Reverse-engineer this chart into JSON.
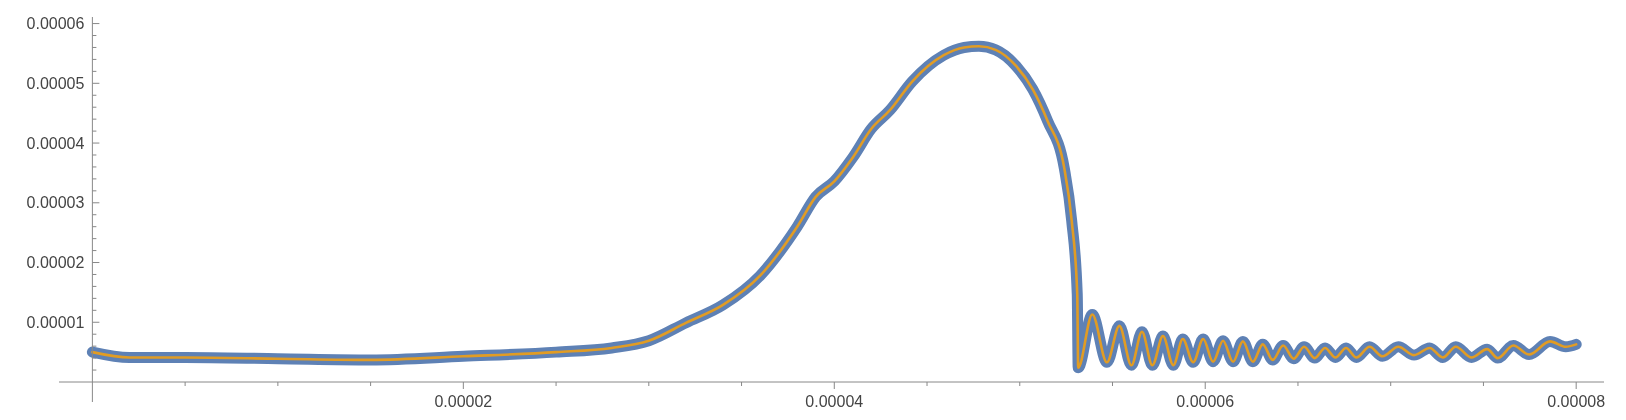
{
  "chart_data": {
    "type": "line",
    "xlim": [
      -1.8e-06,
      8.15e-05
    ],
    "ylim": [
      0,
      6.11e-05
    ],
    "xticks": [
      {
        "value": 0,
        "label": null
      },
      {
        "value": 5e-06,
        "label": null
      },
      {
        "value": 1e-05,
        "label": null
      },
      {
        "value": 1.5e-05,
        "label": null
      },
      {
        "value": 2e-05,
        "label": "0.00002"
      },
      {
        "value": 2.5e-05,
        "label": null
      },
      {
        "value": 3e-05,
        "label": null
      },
      {
        "value": 3.5e-05,
        "label": null
      },
      {
        "value": 4e-05,
        "label": "0.00004"
      },
      {
        "value": 4.5e-05,
        "label": null
      },
      {
        "value": 5e-05,
        "label": null
      },
      {
        "value": 5.5e-05,
        "label": null
      },
      {
        "value": 6e-05,
        "label": "0.00006"
      },
      {
        "value": 6.5e-05,
        "label": null
      },
      {
        "value": 7e-05,
        "label": null
      },
      {
        "value": 7.5e-05,
        "label": null
      },
      {
        "value": 8e-05,
        "label": "0.00008"
      }
    ],
    "yticks": [
      {
        "value": 2e-06,
        "label": null
      },
      {
        "value": 4e-06,
        "label": null
      },
      {
        "value": 6e-06,
        "label": null
      },
      {
        "value": 8e-06,
        "label": null
      },
      {
        "value": 1e-05,
        "label": "0.00001"
      },
      {
        "value": 1.2e-05,
        "label": null
      },
      {
        "value": 1.4e-05,
        "label": null
      },
      {
        "value": 1.6e-05,
        "label": null
      },
      {
        "value": 1.8e-05,
        "label": null
      },
      {
        "value": 2e-05,
        "label": "0.00002"
      },
      {
        "value": 2.2e-05,
        "label": null
      },
      {
        "value": 2.4e-05,
        "label": null
      },
      {
        "value": 2.6e-05,
        "label": null
      },
      {
        "value": 2.8e-05,
        "label": null
      },
      {
        "value": 3e-05,
        "label": "0.00003"
      },
      {
        "value": 3.2e-05,
        "label": null
      },
      {
        "value": 3.4e-05,
        "label": null
      },
      {
        "value": 3.6e-05,
        "label": null
      },
      {
        "value": 3.8e-05,
        "label": null
      },
      {
        "value": 4e-05,
        "label": "0.00004"
      },
      {
        "value": 4.2e-05,
        "label": null
      },
      {
        "value": 4.4e-05,
        "label": null
      },
      {
        "value": 4.6e-05,
        "label": null
      },
      {
        "value": 4.8e-05,
        "label": null
      },
      {
        "value": 5e-05,
        "label": "0.00005"
      },
      {
        "value": 5.2e-05,
        "label": null
      },
      {
        "value": 5.4e-05,
        "label": null
      },
      {
        "value": 5.6e-05,
        "label": null
      },
      {
        "value": 5.8e-05,
        "label": null
      },
      {
        "value": 6e-05,
        "label": "0.00006"
      }
    ],
    "x": [
      0,
      2e-06,
      5e-06,
      1e-05,
      1.5e-05,
      2e-05,
      2.5e-05,
      2.8e-05,
      3e-05,
      3.2e-05,
      3.4e-05,
      3.6e-05,
      3.8e-05,
      3.9e-05,
      4e-05,
      4.1e-05,
      4.2e-05,
      4.3e-05,
      4.42e-05,
      4.59e-05,
      4.7e-05,
      4.78e-05,
      4.87e-05,
      4.98e-05,
      5.07e-05,
      5.15e-05,
      5.24e-05,
      5.28e-05,
      5.31e-05,
      5.315e-05,
      5.391e-05,
      5.47e-05,
      5.537e-05,
      5.602e-05,
      5.659e-05,
      5.715e-05,
      5.772e-05,
      5.828e-05,
      5.879e-05,
      5.935e-05,
      5.989e-05,
      6.042e-05,
      6.096e-05,
      6.15e-05,
      6.203e-05,
      6.257e-05,
      6.31e-05,
      6.364e-05,
      6.42e-05,
      6.477e-05,
      6.533e-05,
      6.59e-05,
      6.646e-05,
      6.702e-05,
      6.759e-05,
      6.815e-05,
      6.886e-05,
      6.956e-05,
      7.041e-05,
      7.126e-05,
      7.21e-05,
      7.281e-05,
      7.351e-05,
      7.436e-05,
      7.52e-05,
      7.577e-05,
      7.661e-05,
      7.746e-05,
      7.859e-05,
      7.944e-05,
      8e-05
    ],
    "series": [
      {
        "color": "#5e81b5",
        "values": [
          5e-06,
          4.1e-06,
          4.1e-06,
          3.9e-06,
          3.7e-06,
          4.3e-06,
          5e-06,
          5.7e-06,
          6.9e-06,
          9.9e-06,
          1.29e-05,
          1.78e-05,
          2.6e-05,
          3.1e-05,
          3.36e-05,
          3.76e-05,
          4.24e-05,
          4.55e-05,
          5.03e-05,
          5.47e-05,
          5.6e-05,
          5.62e-05,
          5.56e-05,
          5.29e-05,
          4.9e-05,
          4.37e-05,
          3.58e-05,
          2.7e-05,
          1.47e-05,
          2.4e-06,
          1.13e-05,
          3.3e-06,
          9.4e-06,
          2.8e-06,
          8.4e-06,
          2.8e-06,
          7.7e-06,
          2.8e-06,
          7.2e-06,
          3.3e-06,
          7.2e-06,
          3.4e-06,
          6.9e-06,
          3.4e-06,
          6.8e-06,
          3.4e-06,
          6.3e-06,
          3.7e-06,
          6.1e-06,
          3.9e-06,
          5.9e-06,
          4e-06,
          5.7e-06,
          4.1e-06,
          5.7e-06,
          4.1e-06,
          5.9e-06,
          4.3e-06,
          5.9e-06,
          4.5e-06,
          5.7e-06,
          4.1e-06,
          5.9e-06,
          4.1e-06,
          5.5e-06,
          4e-06,
          6.1e-06,
          4.6e-06,
          6.8e-06,
          5.9e-06,
          6.3e-06
        ]
      },
      {
        "color": "#e19c24",
        "values": [
          5e-06,
          4.1e-06,
          4.1e-06,
          3.9e-06,
          3.7e-06,
          4.3e-06,
          5e-06,
          5.7e-06,
          6.9e-06,
          9.9e-06,
          1.29e-05,
          1.78e-05,
          2.6e-05,
          3.1e-05,
          3.36e-05,
          3.76e-05,
          4.24e-05,
          4.55e-05,
          5.03e-05,
          5.47e-05,
          5.6e-05,
          5.62e-05,
          5.56e-05,
          5.29e-05,
          4.9e-05,
          4.37e-05,
          3.58e-05,
          2.7e-05,
          1.47e-05,
          2.4e-06,
          1.13e-05,
          3.3e-06,
          9.4e-06,
          2.8e-06,
          8.4e-06,
          2.8e-06,
          7.7e-06,
          2.8e-06,
          7.2e-06,
          3.3e-06,
          7.2e-06,
          3.4e-06,
          6.9e-06,
          3.4e-06,
          6.8e-06,
          3.4e-06,
          6.3e-06,
          3.7e-06,
          6.1e-06,
          3.9e-06,
          5.9e-06,
          4e-06,
          5.7e-06,
          4.1e-06,
          5.7e-06,
          4.1e-06,
          5.9e-06,
          4.3e-06,
          5.9e-06,
          4.5e-06,
          5.7e-06,
          4.1e-06,
          5.9e-06,
          4.1e-06,
          5.5e-06,
          4e-06,
          6.1e-06,
          4.6e-06,
          6.8e-06,
          5.9e-06,
          6.3e-06
        ]
      }
    ]
  }
}
